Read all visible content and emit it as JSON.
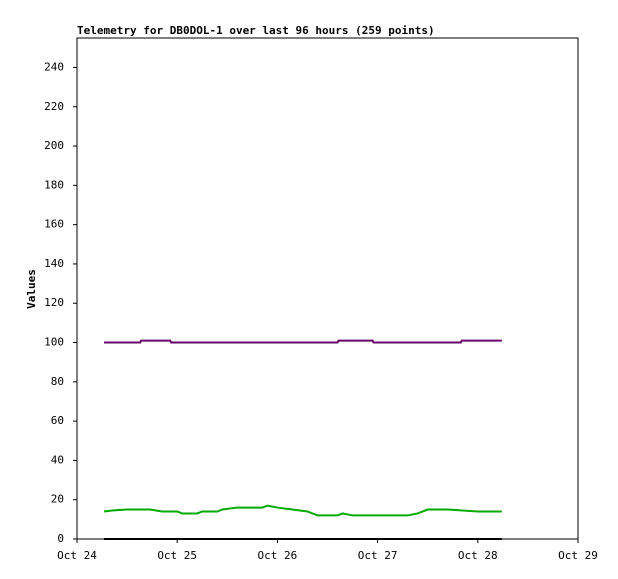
{
  "chart_data": {
    "type": "line",
    "title": "Telemetry for DB0DOL-1 over last 96 hours (259 points)",
    "y_label": "Values",
    "xlim": [
      24,
      29
    ],
    "xticks": [
      {
        "value": 24,
        "label": "Oct 24"
      },
      {
        "value": 25,
        "label": "Oct 25"
      },
      {
        "value": 26,
        "label": "Oct 26"
      },
      {
        "value": 27,
        "label": "Oct 27"
      },
      {
        "value": 28,
        "label": "Oct 28"
      },
      {
        "value": 29,
        "label": "Oct 29"
      }
    ],
    "ylim": [
      0,
      255
    ],
    "yticks": [
      0,
      20,
      40,
      60,
      80,
      100,
      120,
      140,
      160,
      180,
      200,
      220,
      240
    ],
    "series": [
      {
        "color": "#660066",
        "x": [
          24.27,
          24.63,
          24.64,
          24.93,
          24.94,
          26.6,
          26.61,
          26.95,
          26.96,
          27.83,
          27.84,
          28.24
        ],
        "values": [
          100,
          100,
          101,
          101,
          100,
          100,
          101,
          101,
          100,
          100,
          101,
          101
        ]
      },
      {
        "color": "#00aa00",
        "x": [
          24.27,
          24.35,
          24.5,
          24.73,
          24.85,
          25.0,
          25.05,
          25.2,
          25.25,
          25.4,
          25.45,
          25.6,
          25.85,
          25.9,
          26.0,
          26.15,
          26.3,
          26.4,
          26.6,
          26.65,
          26.7,
          26.75,
          27.3,
          27.4,
          27.5,
          27.7,
          27.85,
          28.0,
          28.24
        ],
        "values": [
          14,
          14.5,
          15,
          15,
          14,
          14,
          13,
          13,
          14,
          14,
          15,
          16,
          16,
          17,
          16,
          15,
          14,
          12,
          12,
          13,
          12.5,
          12,
          12,
          13,
          15,
          15,
          14.5,
          14,
          14
        ]
      },
      {
        "color": "#000000",
        "x": [
          24.27,
          28.24
        ],
        "values": [
          0,
          0
        ]
      }
    ]
  }
}
